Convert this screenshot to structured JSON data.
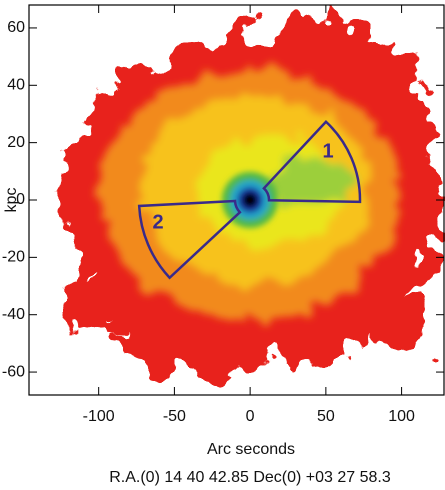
{
  "chart_data": {
    "type": "image",
    "xlabel": "Arc seconds",
    "ylabel": "kpc",
    "xlim": [
      -146,
      128
    ],
    "ylim": [
      -68,
      68
    ],
    "xticks": [
      -100,
      -50,
      0,
      50,
      100
    ],
    "yticks": [
      -60,
      -40,
      -20,
      0,
      20,
      40,
      60
    ],
    "annotations": [
      "1",
      "2"
    ],
    "footer": "R.A.(0) 14 40 42.85   Dec(0) +03 27 58.3"
  }
}
